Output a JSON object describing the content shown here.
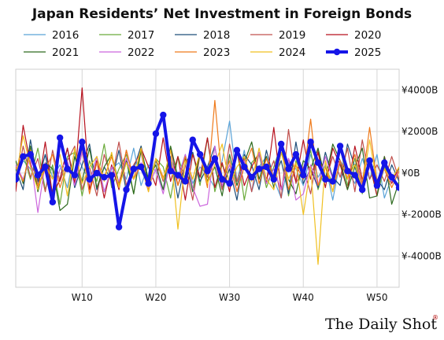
{
  "chart_data": {
    "type": "line",
    "title": "Japan Residents’ Net Investment in Foreign Bonds",
    "xlabel": "",
    "ylabel": "",
    "x_ticks": [
      "W10",
      "W20",
      "W30",
      "W40",
      "W50"
    ],
    "x_tick_weeks": [
      10,
      20,
      30,
      40,
      50
    ],
    "xlim": [
      1,
      53
    ],
    "ylim": [
      -5500,
      5000
    ],
    "y_ticks": [
      4000,
      2000,
      0,
      -2000,
      -4000
    ],
    "y_tick_labels": [
      "¥4000B",
      "¥2000B",
      "¥0B",
      "¥-2000B",
      "¥-4000B"
    ],
    "y_axis_side": "right",
    "grid": true,
    "legend": "top",
    "series": [
      {
        "name": "2016",
        "color": "#5aa3d8",
        "width": 1.2,
        "values": [
          -300,
          600,
          200,
          -500,
          900,
          -200,
          400,
          -700,
          1100,
          300,
          -400,
          800,
          -900,
          200,
          500,
          -300,
          1200,
          -600,
          400,
          100,
          -800,
          700,
          -200,
          900,
          -500,
          300,
          -100,
          -700,
          600,
          2500,
          -400,
          1100,
          -900,
          300,
          800,
          -300,
          -1200,
          500,
          200,
          -600,
          900,
          -200,
          400,
          -1300,
          600,
          100,
          -500,
          700,
          -300,
          900,
          -1200,
          -200,
          -600
        ]
      },
      {
        "name": "2017",
        "color": "#6aaa3a",
        "width": 1.2,
        "values": [
          -500,
          900,
          -300,
          1200,
          -800,
          400,
          -1500,
          800,
          1000,
          -1100,
          600,
          -400,
          1400,
          -700,
          200,
          900,
          -1000,
          1300,
          -500,
          700,
          300,
          -1200,
          800,
          -300,
          1000,
          -600,
          1700,
          -900,
          400,
          -400,
          1200,
          -1300,
          500,
          900,
          -700,
          300,
          1400,
          -1100,
          600,
          -200,
          1100,
          -800,
          300,
          -500,
          1300,
          -600,
          700,
          -1000,
          400,
          -1100,
          300,
          -300,
          200
        ]
      },
      {
        "name": "2018",
        "color": "#1f4e79",
        "width": 1.2,
        "values": [
          200,
          -800,
          1600,
          -400,
          900,
          -1000,
          -300,
          1200,
          -700,
          400,
          1400,
          -800,
          300,
          -400,
          1100,
          -900,
          200,
          1300,
          -600,
          600,
          -300,
          800,
          -1200,
          500,
          1000,
          -400,
          300,
          1300,
          -700,
          200,
          -1300,
          900,
          400,
          -800,
          1100,
          -300,
          600,
          -1000,
          1500,
          -500,
          200,
          -700,
          1000,
          -200,
          -600,
          1400,
          300,
          -900,
          600,
          -300,
          -800,
          400,
          -400
        ]
      },
      {
        "name": "2019",
        "color": "#c0504d",
        "width": 1.2,
        "values": [
          -700,
          1300,
          -200,
          700,
          -900,
          1100,
          -400,
          600,
          1300,
          -800,
          300,
          -1100,
          900,
          -300,
          1500,
          -600,
          400,
          1000,
          -800,
          700,
          -400,
          1200,
          -600,
          400,
          -1300,
          900,
          -200,
          600,
          -800,
          1400,
          -400,
          700,
          -900,
          1000,
          -300,
          600,
          -1200,
          2100,
          -500,
          300,
          -1000,
          1100,
          -400,
          800,
          -200,
          1200,
          -900,
          1600,
          -300,
          400,
          -400,
          800,
          -300
        ]
      },
      {
        "name": "2020",
        "color": "#b7121f",
        "width": 1.2,
        "values": [
          -900,
          2300,
          400,
          -800,
          1500,
          -1100,
          -300,
          1200,
          -500,
          4100,
          -800,
          600,
          -1200,
          400,
          -800,
          1100,
          -300,
          1200,
          300,
          -600,
          1700,
          -400,
          800,
          -1300,
          900,
          -200,
          1700,
          -700,
          500,
          -900,
          1100,
          -600,
          300,
          1000,
          -500,
          2200,
          -800,
          700,
          -400,
          1600,
          -300,
          1000,
          -700,
          1200,
          400,
          -800,
          1300,
          -300,
          500,
          -1100,
          800,
          -500,
          300
        ]
      },
      {
        "name": "2021",
        "color": "#2d6a1e",
        "width": 1.2,
        "values": [
          600,
          -500,
          1300,
          -900,
          500,
          200,
          -1800,
          -1500,
          800,
          -400,
          1200,
          -700,
          300,
          900,
          -500,
          600,
          -1000,
          1100,
          -300,
          400,
          -800,
          1300,
          -200,
          700,
          -900,
          1000,
          -400,
          300,
          -1100,
          900,
          -600,
          500,
          1500,
          -300,
          800,
          -700,
          1000,
          -300,
          -1000,
          600,
          200,
          1200,
          -300,
          1400,
          600,
          -800,
          300,
          1200,
          -1200,
          -1100,
          800,
          -1500,
          -400
        ]
      },
      {
        "name": "2022",
        "color": "#cc66dd",
        "width": 1.2,
        "values": [
          400,
          -300,
          800,
          -1900,
          500,
          -1200,
          200,
          600,
          -600,
          1000,
          -500,
          800,
          -900,
          300,
          -400,
          700,
          -300,
          500,
          -700,
          200,
          -1000,
          600,
          -300,
          900,
          -700,
          -1600,
          -1500,
          1300,
          -600,
          400,
          -900,
          600,
          -300,
          1000,
          -500,
          200,
          -800,
          700,
          -1300,
          -1000,
          400,
          -600,
          800,
          -300,
          600,
          -200,
          900,
          -700,
          300,
          -600,
          200,
          -400,
          100
        ]
      },
      {
        "name": "2023",
        "color": "#ef7a1a",
        "width": 1.2,
        "values": [
          300,
          -400,
          1100,
          -600,
          200,
          900,
          -700,
          400,
          -300,
          1200,
          -1000,
          500,
          -200,
          800,
          -600,
          1100,
          -300,
          400,
          -900,
          700,
          -200,
          500,
          -600,
          800,
          -300,
          1000,
          -700,
          3500,
          -400,
          600,
          -900,
          300,
          1200,
          -500,
          700,
          -200,
          1500,
          -800,
          400,
          -300,
          2600,
          -600,
          300,
          -900,
          600,
          -300,
          900,
          -500,
          2200,
          -400,
          200,
          -700,
          100
        ]
      },
      {
        "name": "2024",
        "color": "#f0c020",
        "width": 1.2,
        "values": [
          -200,
          1800,
          300,
          -800,
          400,
          -300,
          900,
          -1100,
          1200,
          -500,
          300,
          800,
          -400,
          1000,
          -700,
          500,
          -300,
          1200,
          -900,
          700,
          -300,
          1100,
          -2700,
          600,
          -300,
          1000,
          -500,
          400,
          1400,
          -600,
          300,
          800,
          -400,
          1200,
          -300,
          -800,
          1000,
          -300,
          500,
          -2000,
          300,
          -4400,
          600,
          -900,
          1200,
          -300,
          400,
          -700,
          1600,
          -500,
          200,
          -300,
          300
        ]
      },
      {
        "name": "2025",
        "color": "#1515e8",
        "width": 4,
        "markers": true,
        "values": [
          -300,
          800,
          900,
          -100,
          300,
          -1400,
          1700,
          200,
          -100,
          1500,
          -300,
          0,
          -200,
          -100,
          -2600,
          -800,
          200,
          300,
          -500,
          1900,
          2800,
          100,
          -100,
          -400,
          1600,
          900,
          100,
          700,
          -300,
          -500,
          1100,
          300,
          -200,
          200,
          300,
          -300,
          1400,
          200,
          900,
          -100,
          1500,
          500,
          -300,
          -400,
          1300,
          100,
          -100,
          -800,
          600,
          -600,
          500,
          -200,
          -700
        ]
      }
    ]
  },
  "brand": {
    "text": "The Daily Shot",
    "mark": "®"
  }
}
